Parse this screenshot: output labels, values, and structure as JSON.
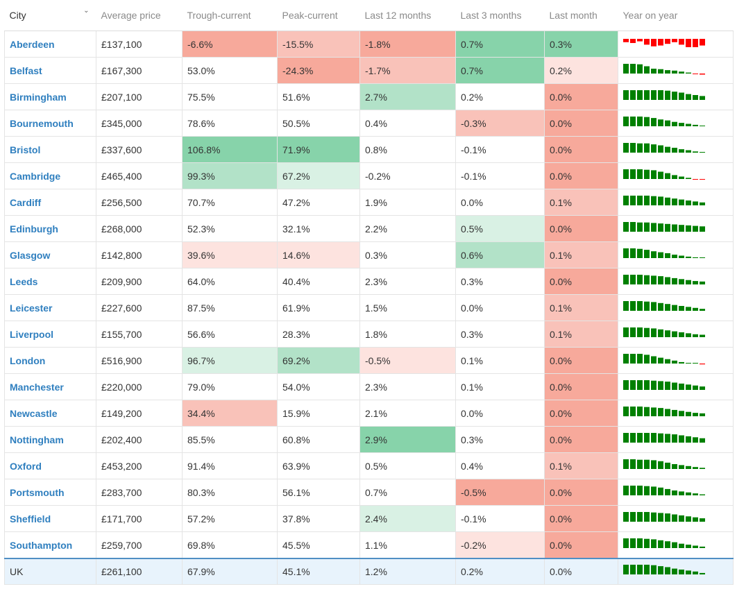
{
  "colors": {
    "city_link": "#2f7fbf",
    "uk_row_bg": "#e8f3fc",
    "spark_positive": "#008000",
    "spark_negative": "#ff0000",
    "scale": {
      "g3": "#87d3aa",
      "g2": "#b2e2c8",
      "g1": "#d9f1e4",
      "r1": "#fde3df",
      "r2": "#f9c2b9",
      "r3": "#f7a99b"
    }
  },
  "table": {
    "headers": {
      "city": "City",
      "average_price": "Average price",
      "trough_current": "Trough-current",
      "peak_current": "Peak-current",
      "last_12_months": "Last 12 months",
      "last_3_months": "Last 3 months",
      "last_month": "Last month",
      "year_on_year": "Year on year"
    },
    "sort_icon": "chevron-down-icon",
    "rows": [
      {
        "city": "Aberdeen",
        "avg": "£137,100",
        "trough": "-6.6%",
        "peak": "-15.5%",
        "l12": "-1.8%",
        "l3": "0.7%",
        "lm": "0.3%",
        "shade": {
          "trough": "r3",
          "peak": "r2",
          "l12": "r3",
          "l3": "g3",
          "lm": "g3"
        },
        "yoy": [
          0.4,
          0.5,
          0.3,
          0.7,
          0.9,
          0.8,
          0.6,
          0.4,
          0.7,
          1.0,
          1.0,
          0.8
        ],
        "yoy_sign": -1
      },
      {
        "city": "Belfast",
        "avg": "£167,300",
        "trough": "53.0%",
        "peak": "-24.3%",
        "l12": "-1.7%",
        "l3": "0.7%",
        "lm": "0.2%",
        "shade": {
          "peak": "r3",
          "l12": "r2",
          "l3": "g3",
          "lm": "r1"
        },
        "yoy": [
          1.0,
          1.0,
          0.95,
          0.75,
          0.5,
          0.45,
          0.35,
          0.3,
          0.2,
          0.1,
          -0.05,
          -0.15
        ],
        "yoy_sign": 1
      },
      {
        "city": "Birmingham",
        "avg": "£207,100",
        "trough": "75.5%",
        "peak": "51.6%",
        "l12": "2.7%",
        "l3": "0.2%",
        "lm": "0.0%",
        "shade": {
          "l12": "g2",
          "lm": "r3"
        },
        "yoy": [
          1.0,
          1.0,
          1.0,
          1.0,
          1.0,
          1.0,
          0.95,
          0.85,
          0.75,
          0.6,
          0.5,
          0.4
        ],
        "yoy_sign": 1
      },
      {
        "city": "Bournemouth",
        "avg": "£345,000",
        "trough": "78.6%",
        "peak": "50.5%",
        "l12": "0.4%",
        "l3": "-0.3%",
        "lm": "0.0%",
        "shade": {
          "l3": "r2",
          "lm": "r3"
        },
        "yoy": [
          1.0,
          1.0,
          1.0,
          0.95,
          0.85,
          0.7,
          0.6,
          0.45,
          0.35,
          0.25,
          0.15,
          0.05
        ],
        "yoy_sign": 1
      },
      {
        "city": "Bristol",
        "avg": "£337,600",
        "trough": "106.8%",
        "peak": "71.9%",
        "l12": "0.8%",
        "l3": "-0.1%",
        "lm": "0.0%",
        "shade": {
          "trough": "g3",
          "peak": "g3",
          "lm": "r3"
        },
        "yoy": [
          1.0,
          1.0,
          0.95,
          0.95,
          0.85,
          0.75,
          0.6,
          0.5,
          0.35,
          0.25,
          0.12,
          0.05
        ],
        "yoy_sign": 1
      },
      {
        "city": "Cambridge",
        "avg": "£465,400",
        "trough": "99.3%",
        "peak": "67.2%",
        "l12": "-0.2%",
        "l3": "-0.1%",
        "lm": "0.0%",
        "shade": {
          "trough": "g2",
          "peak": "g1",
          "lm": "r3"
        },
        "yoy": [
          1.0,
          1.0,
          1.0,
          0.95,
          0.9,
          0.75,
          0.6,
          0.4,
          0.25,
          0.12,
          -0.05,
          -0.08
        ],
        "yoy_sign": 1
      },
      {
        "city": "Cardiff",
        "avg": "£256,500",
        "trough": "70.7%",
        "peak": "47.2%",
        "l12": "1.9%",
        "l3": "0.0%",
        "lm": "0.1%",
        "shade": {
          "lm": "r2"
        },
        "yoy": [
          1.0,
          1.0,
          1.0,
          1.0,
          0.95,
          0.9,
          0.8,
          0.7,
          0.6,
          0.5,
          0.4,
          0.3
        ],
        "yoy_sign": 1
      },
      {
        "city": "Edinburgh",
        "avg": "£268,000",
        "trough": "52.3%",
        "peak": "32.1%",
        "l12": "2.2%",
        "l3": "0.5%",
        "lm": "0.0%",
        "shade": {
          "l3": "g1",
          "lm": "r3"
        },
        "yoy": [
          1.0,
          1.0,
          0.95,
          0.95,
          0.9,
          0.85,
          0.8,
          0.75,
          0.7,
          0.65,
          0.6,
          0.55
        ],
        "yoy_sign": 1
      },
      {
        "city": "Glasgow",
        "avg": "£142,800",
        "trough": "39.6%",
        "peak": "14.6%",
        "l12": "0.3%",
        "l3": "0.6%",
        "lm": "0.1%",
        "shade": {
          "trough": "r1",
          "peak": "r1",
          "l3": "g2",
          "lm": "r2"
        },
        "yoy": [
          1.0,
          1.0,
          0.95,
          0.85,
          0.7,
          0.6,
          0.5,
          0.35,
          0.25,
          0.15,
          0.08,
          0.05
        ],
        "yoy_sign": 1
      },
      {
        "city": "Leeds",
        "avg": "£209,900",
        "trough": "64.0%",
        "peak": "40.4%",
        "l12": "2.3%",
        "l3": "0.3%",
        "lm": "0.0%",
        "shade": {
          "lm": "r3"
        },
        "yoy": [
          1.0,
          1.0,
          1.0,
          0.95,
          0.9,
          0.85,
          0.75,
          0.65,
          0.55,
          0.45,
          0.35,
          0.3
        ],
        "yoy_sign": 1
      },
      {
        "city": "Leicester",
        "avg": "£227,600",
        "trough": "87.5%",
        "peak": "61.9%",
        "l12": "1.5%",
        "l3": "0.0%",
        "lm": "0.1%",
        "shade": {
          "lm": "r2"
        },
        "yoy": [
          1.0,
          1.0,
          1.0,
          0.95,
          0.9,
          0.8,
          0.7,
          0.6,
          0.5,
          0.4,
          0.3,
          0.2
        ],
        "yoy_sign": 1
      },
      {
        "city": "Liverpool",
        "avg": "£155,700",
        "trough": "56.6%",
        "peak": "28.3%",
        "l12": "1.8%",
        "l3": "0.3%",
        "lm": "0.1%",
        "shade": {
          "lm": "r2"
        },
        "yoy": [
          1.0,
          1.0,
          1.0,
          0.95,
          0.9,
          0.8,
          0.7,
          0.6,
          0.5,
          0.4,
          0.3,
          0.25
        ],
        "yoy_sign": 1
      },
      {
        "city": "London",
        "avg": "£516,900",
        "trough": "96.7%",
        "peak": "69.2%",
        "l12": "-0.5%",
        "l3": "0.1%",
        "lm": "0.0%",
        "shade": {
          "trough": "g1",
          "peak": "g2",
          "l12": "r1",
          "lm": "r3"
        },
        "yoy": [
          1.0,
          1.0,
          1.0,
          0.9,
          0.75,
          0.6,
          0.45,
          0.3,
          0.15,
          0.05,
          0,
          -0.12
        ],
        "yoy_sign": 1
      },
      {
        "city": "Manchester",
        "avg": "£220,000",
        "trough": "79.0%",
        "peak": "54.0%",
        "l12": "2.3%",
        "l3": "0.1%",
        "lm": "0.0%",
        "shade": {
          "lm": "r3"
        },
        "yoy": [
          1.0,
          1.0,
          1.0,
          1.0,
          0.95,
          0.9,
          0.85,
          0.75,
          0.65,
          0.55,
          0.45,
          0.35
        ],
        "yoy_sign": 1
      },
      {
        "city": "Newcastle",
        "avg": "£149,200",
        "trough": "34.4%",
        "peak": "15.9%",
        "l12": "2.1%",
        "l3": "0.0%",
        "lm": "0.0%",
        "shade": {
          "trough": "r2",
          "lm": "r3"
        },
        "yoy": [
          1.0,
          1.0,
          1.0,
          0.95,
          0.9,
          0.85,
          0.75,
          0.65,
          0.55,
          0.45,
          0.35,
          0.3
        ],
        "yoy_sign": 1
      },
      {
        "city": "Nottingham",
        "avg": "£202,400",
        "trough": "85.5%",
        "peak": "60.8%",
        "l12": "2.9%",
        "l3": "0.3%",
        "lm": "0.0%",
        "shade": {
          "l12": "g3",
          "lm": "r3"
        },
        "yoy": [
          1.0,
          1.0,
          1.0,
          1.0,
          1.0,
          0.95,
          0.9,
          0.85,
          0.75,
          0.65,
          0.55,
          0.45
        ],
        "yoy_sign": 1
      },
      {
        "city": "Oxford",
        "avg": "£453,200",
        "trough": "91.4%",
        "peak": "63.9%",
        "l12": "0.5%",
        "l3": "0.4%",
        "lm": "0.1%",
        "shade": {
          "lm": "r2"
        },
        "yoy": [
          1.0,
          1.0,
          0.95,
          0.95,
          0.9,
          0.8,
          0.65,
          0.5,
          0.4,
          0.3,
          0.2,
          0.12
        ],
        "yoy_sign": 1
      },
      {
        "city": "Portsmouth",
        "avg": "£283,700",
        "trough": "80.3%",
        "peak": "56.1%",
        "l12": "0.7%",
        "l3": "-0.5%",
        "lm": "0.0%",
        "shade": {
          "l3": "r3",
          "lm": "r3"
        },
        "yoy": [
          1.0,
          1.0,
          1.0,
          0.95,
          0.9,
          0.8,
          0.65,
          0.5,
          0.4,
          0.3,
          0.2,
          0.1
        ],
        "yoy_sign": 1
      },
      {
        "city": "Sheffield",
        "avg": "£171,700",
        "trough": "57.2%",
        "peak": "37.8%",
        "l12": "2.4%",
        "l3": "-0.1%",
        "lm": "0.0%",
        "shade": {
          "l12": "g1",
          "lm": "r3"
        },
        "yoy": [
          1.0,
          1.0,
          1.0,
          1.0,
          0.95,
          0.9,
          0.85,
          0.75,
          0.65,
          0.55,
          0.45,
          0.35
        ],
        "yoy_sign": 1
      },
      {
        "city": "Southampton",
        "avg": "£259,700",
        "trough": "69.8%",
        "peak": "45.5%",
        "l12": "1.1%",
        "l3": "-0.2%",
        "lm": "0.0%",
        "shade": {
          "l3": "r1",
          "lm": "r3"
        },
        "yoy": [
          1.0,
          1.0,
          1.0,
          0.95,
          0.9,
          0.8,
          0.7,
          0.6,
          0.45,
          0.35,
          0.25,
          0.15
        ],
        "yoy_sign": 1
      }
    ],
    "summary": {
      "city": "UK",
      "avg": "£261,100",
      "trough": "67.9%",
      "peak": "45.1%",
      "l12": "1.2%",
      "l3": "0.2%",
      "lm": "0.0%",
      "yoy": [
        1.0,
        1.0,
        1.0,
        1.0,
        0.95,
        0.85,
        0.75,
        0.6,
        0.5,
        0.4,
        0.3,
        0.15
      ],
      "yoy_sign": 1
    }
  }
}
